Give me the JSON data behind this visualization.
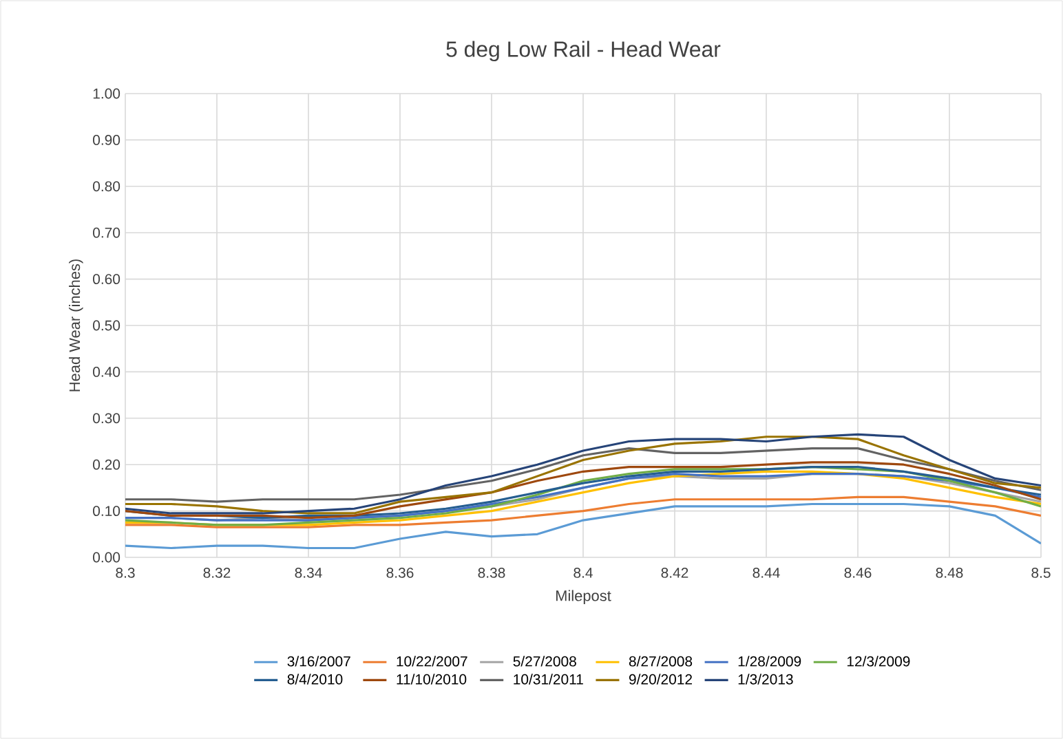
{
  "chart_data": {
    "type": "line",
    "title": "5 deg Low Rail - Head Wear",
    "xlabel": "Milepost",
    "ylabel": "Head Wear (inches)",
    "x": [
      8.3,
      8.31,
      8.32,
      8.33,
      8.34,
      8.35,
      8.36,
      8.37,
      8.38,
      8.39,
      8.4,
      8.41,
      8.42,
      8.43,
      8.44,
      8.45,
      8.46,
      8.47,
      8.48,
      8.49,
      8.5
    ],
    "series": [
      {
        "name": "3/16/2007",
        "color": "#5b9bd5",
        "values": [
          0.025,
          0.02,
          0.025,
          0.025,
          0.02,
          0.02,
          0.04,
          0.055,
          0.045,
          0.05,
          0.08,
          0.095,
          0.11,
          0.11,
          0.11,
          0.115,
          0.115,
          0.115,
          0.11,
          0.09,
          0.03
        ]
      },
      {
        "name": "10/22/2007",
        "color": "#ed7d31",
        "values": [
          0.07,
          0.07,
          0.065,
          0.065,
          0.065,
          0.07,
          0.07,
          0.075,
          0.08,
          0.09,
          0.1,
          0.115,
          0.125,
          0.125,
          0.125,
          0.125,
          0.13,
          0.13,
          0.12,
          0.11,
          0.09
        ]
      },
      {
        "name": "5/27/2008",
        "color": "#a5a5a5",
        "values": [
          0.085,
          0.085,
          0.08,
          0.085,
          0.08,
          0.085,
          0.09,
          0.1,
          0.11,
          0.125,
          0.15,
          0.17,
          0.175,
          0.17,
          0.17,
          0.18,
          0.18,
          0.175,
          0.16,
          0.14,
          0.12
        ]
      },
      {
        "name": "8/27/2008",
        "color": "#ffc000",
        "values": [
          0.075,
          0.075,
          0.07,
          0.07,
          0.07,
          0.075,
          0.08,
          0.09,
          0.1,
          0.12,
          0.14,
          0.16,
          0.175,
          0.18,
          0.185,
          0.185,
          0.18,
          0.17,
          0.15,
          0.13,
          0.115
        ]
      },
      {
        "name": "1/28/2009",
        "color": "#4472c4",
        "values": [
          0.085,
          0.085,
          0.08,
          0.08,
          0.08,
          0.085,
          0.09,
          0.1,
          0.115,
          0.13,
          0.15,
          0.17,
          0.18,
          0.175,
          0.175,
          0.18,
          0.18,
          0.175,
          0.165,
          0.15,
          0.13
        ]
      },
      {
        "name": "12/3/2009",
        "color": "#70ad47",
        "values": [
          0.08,
          0.075,
          0.07,
          0.07,
          0.075,
          0.08,
          0.085,
          0.095,
          0.11,
          0.135,
          0.165,
          0.18,
          0.19,
          0.19,
          0.19,
          0.195,
          0.19,
          0.185,
          0.165,
          0.14,
          0.11
        ]
      },
      {
        "name": "8/4/2010",
        "color": "#255e91",
        "values": [
          0.1,
          0.09,
          0.09,
          0.085,
          0.09,
          0.09,
          0.095,
          0.105,
          0.12,
          0.14,
          0.16,
          0.175,
          0.185,
          0.185,
          0.19,
          0.195,
          0.195,
          0.185,
          0.17,
          0.15,
          0.135
        ]
      },
      {
        "name": "11/10/2010",
        "color": "#9e480e",
        "values": [
          0.1,
          0.09,
          0.09,
          0.09,
          0.085,
          0.09,
          0.11,
          0.125,
          0.14,
          0.165,
          0.185,
          0.195,
          0.195,
          0.195,
          0.2,
          0.205,
          0.205,
          0.2,
          0.18,
          0.155,
          0.125
        ]
      },
      {
        "name": "10/31/2011",
        "color": "#636363",
        "values": [
          0.125,
          0.125,
          0.12,
          0.125,
          0.125,
          0.125,
          0.135,
          0.15,
          0.165,
          0.19,
          0.22,
          0.235,
          0.225,
          0.225,
          0.23,
          0.235,
          0.235,
          0.21,
          0.19,
          0.165,
          0.145
        ]
      },
      {
        "name": "9/20/2012",
        "color": "#997300",
        "values": [
          0.115,
          0.115,
          0.11,
          0.1,
          0.095,
          0.095,
          0.12,
          0.13,
          0.14,
          0.175,
          0.21,
          0.23,
          0.245,
          0.25,
          0.26,
          0.26,
          0.255,
          0.22,
          0.19,
          0.16,
          0.15
        ]
      },
      {
        "name": "1/3/2013",
        "color": "#264478",
        "values": [
          0.105,
          0.095,
          0.095,
          0.095,
          0.1,
          0.105,
          0.125,
          0.155,
          0.175,
          0.2,
          0.23,
          0.25,
          0.255,
          0.255,
          0.25,
          0.26,
          0.265,
          0.26,
          0.21,
          0.17,
          0.155
        ]
      }
    ],
    "xlim": [
      8.3,
      8.5
    ],
    "xticks": [
      8.3,
      8.32,
      8.34,
      8.36,
      8.38,
      8.4,
      8.42,
      8.44,
      8.46,
      8.48,
      8.5
    ],
    "ylim": [
      0,
      1
    ],
    "yticks": [
      {
        "value": 0,
        "label": "0.00"
      },
      {
        "value": 0.1,
        "label": "0.10"
      },
      {
        "value": 0.2,
        "label": "0.20"
      },
      {
        "value": 0.3,
        "label": "0.30"
      },
      {
        "value": 0.4,
        "label": "0.40"
      },
      {
        "value": 0.5,
        "label": "0.50"
      },
      {
        "value": 0.6,
        "label": "0.60"
      },
      {
        "value": 0.7,
        "label": "0.70"
      },
      {
        "value": 0.8,
        "label": "0.80"
      },
      {
        "value": 0.9,
        "label": "0.90"
      },
      {
        "value": 1,
        "label": "1.00"
      }
    ],
    "grid": true,
    "legend": "bottom",
    "marker": "none",
    "line_style": "solid"
  }
}
